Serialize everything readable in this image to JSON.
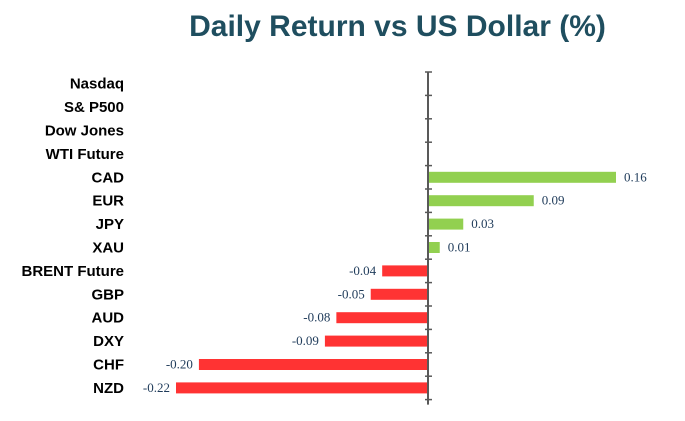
{
  "chart_data": {
    "type": "bar",
    "orientation": "horizontal",
    "title": "Daily Return vs US Dollar (%)",
    "categories": [
      "Nasdaq",
      "S& P500",
      "Dow Jones",
      "WTI Future",
      "CAD",
      "EUR",
      "JPY",
      "XAU",
      "BRENT Future",
      "GBP",
      "AUD",
      "DXY",
      "CHF",
      "NZD"
    ],
    "values": [
      null,
      null,
      null,
      null,
      0.16,
      0.09,
      0.03,
      0.01,
      -0.04,
      -0.05,
      -0.08,
      -0.09,
      -0.2,
      -0.22
    ],
    "value_labels": [
      "",
      "",
      "",
      "",
      "0.16",
      "0.09",
      "0.03",
      "0.01",
      "-0.04",
      "-0.05",
      "-0.08",
      "-0.09",
      "-0.20",
      "-0.22"
    ],
    "xlim": [
      -0.22,
      0.16
    ],
    "positive_color": "#92d050",
    "negative_color": "#ff3333",
    "axis_color": "#595959",
    "grid": false
  }
}
